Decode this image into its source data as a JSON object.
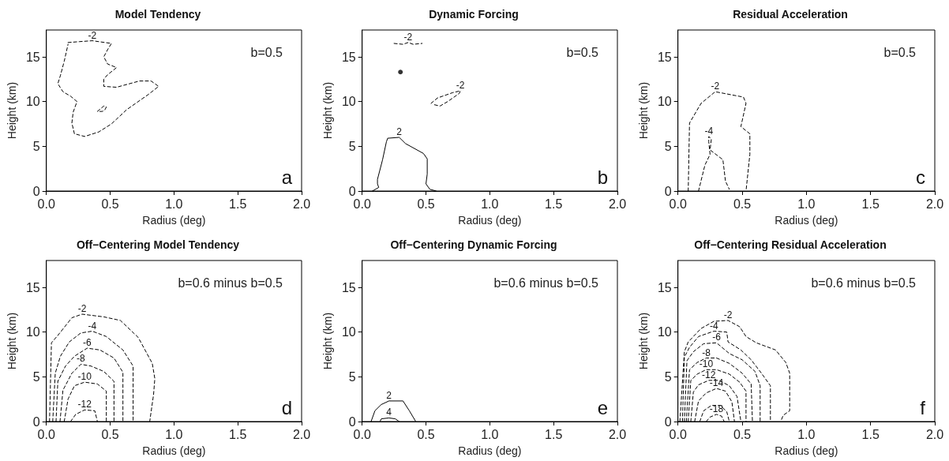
{
  "chart_data": [
    {
      "type": "line",
      "title": "Model Tendency",
      "xlabel": "Radius (deg)",
      "ylabel": "Height (km)",
      "annotations": [
        "b=0.5",
        "a"
      ],
      "xlim": [
        0,
        2
      ],
      "xticks": [
        {
          "value": 0,
          "label": "0.0"
        },
        {
          "value": 0.5,
          "label": "0.5"
        },
        {
          "value": 1,
          "label": "1.0"
        },
        {
          "value": 1.5,
          "label": "1.5"
        },
        {
          "value": 2,
          "label": "2.0"
        }
      ],
      "ylim": [
        0,
        18
      ],
      "yticks": [
        0,
        5,
        10,
        15
      ],
      "marker": "none",
      "series": [
        {
          "name": "-2",
          "color": "#000000",
          "line_style": "dashed",
          "x": [
            0.17,
            0.26,
            0.36,
            0.51,
            0.48,
            0.45,
            0.48,
            0.55,
            0.48,
            0.45,
            0.45,
            0.55,
            0.73,
            0.82,
            0.88,
            0.8,
            0.63,
            0.51,
            0.41,
            0.3,
            0.22,
            0.2,
            0.21,
            0.24,
            0.19,
            0.13,
            0.09,
            0.11,
            0.14,
            0.17
          ],
          "values": [
            16.6,
            16.7,
            16.8,
            16.5,
            15.8,
            15,
            14.2,
            13.8,
            13,
            12.5,
            11.7,
            11.6,
            12.3,
            12.3,
            11.7,
            10.8,
            9.1,
            7.5,
            6.6,
            6.1,
            6.4,
            7.6,
            8.8,
            10,
            10.6,
            11.1,
            12,
            12.9,
            14.5,
            16.4
          ]
        },
        {
          "color": "#000000",
          "line_style": "dashed",
          "x": [
            0.4,
            0.45,
            0.47,
            0.46,
            0.44,
            0.41
          ],
          "values": [
            8.9,
            9.5,
            9.4,
            9.1,
            8.9,
            8.9
          ]
        }
      ]
    },
    {
      "type": "line",
      "title": "Dynamic Forcing",
      "xlabel": "Radius (deg)",
      "ylabel": "Height (km)",
      "annotations": [
        "b=0.5",
        "b"
      ],
      "xlim": [
        0,
        2
      ],
      "xticks": [
        {
          "value": 0,
          "label": "0.0"
        },
        {
          "value": 0.5,
          "label": "0.5"
        },
        {
          "value": 1,
          "label": "1.0"
        },
        {
          "value": 1.5,
          "label": "1.5"
        },
        {
          "value": 2,
          "label": "2.0"
        }
      ],
      "ylim": [
        0,
        18
      ],
      "yticks": [
        0,
        5,
        10,
        15
      ],
      "marker": "none",
      "series": [
        {
          "name": "-2",
          "color": "#000000",
          "line_style": "dashed",
          "x": [
            0.25,
            0.32,
            0.36,
            0.4,
            0.47
          ],
          "values": [
            16.5,
            16.4,
            16.6,
            16.4,
            16.5
          ]
        },
        {
          "name": "-2",
          "color": "#000000",
          "line_style": "dashed",
          "x": [
            0.54,
            0.59,
            0.71,
            0.77,
            0.76,
            0.67,
            0.61,
            0.55
          ],
          "values": [
            9.8,
            10.4,
            11,
            11.2,
            10.9,
            10,
            9.5,
            9.7
          ]
        },
        {
          "name": "2",
          "color": "#000000",
          "line_style": "solid",
          "x": [
            0.08,
            0.13,
            0.12,
            0.12,
            0.16,
            0.19,
            0.2,
            0.29,
            0.34,
            0.48,
            0.51,
            0.51,
            0.5,
            0.53,
            0.58
          ],
          "values": [
            0,
            0.4,
            0.8,
            1.3,
            3.5,
            5.5,
            5.9,
            6,
            5.3,
            4.2,
            3.6,
            1.9,
            0.8,
            0.2,
            0
          ]
        },
        {
          "type": "scatter",
          "color": "#000000",
          "marker": "circle",
          "x": [
            0.3
          ],
          "values": [
            13.3
          ]
        }
      ]
    },
    {
      "type": "line",
      "title": "Residual Acceleration",
      "xlabel": "Radius (deg)",
      "ylabel": "Height (km)",
      "annotations": [
        "b=0.5",
        "c"
      ],
      "xlim": [
        0,
        2
      ],
      "xticks": [
        {
          "value": 0,
          "label": "0.0"
        },
        {
          "value": 0.5,
          "label": "0.5"
        },
        {
          "value": 1,
          "label": "1.0"
        },
        {
          "value": 1.5,
          "label": "1.5"
        },
        {
          "value": 2,
          "label": "2.0"
        }
      ],
      "ylim": [
        0,
        18
      ],
      "yticks": [
        0,
        5,
        10,
        15
      ],
      "marker": "none",
      "series": [
        {
          "name": "-2",
          "color": "#000000",
          "line_style": "dashed",
          "x": [
            0.08,
            0.09,
            0.18,
            0.29,
            0.51,
            0.53,
            0.49,
            0.56,
            0.56,
            0.53
          ],
          "values": [
            0,
            7.6,
            9.8,
            11.1,
            10.5,
            9.8,
            7.2,
            6.4,
            4.1,
            0
          ]
        },
        {
          "name": "-4",
          "color": "#000000",
          "line_style": "dashed",
          "x": [
            0.16,
            0.21,
            0.25,
            0.24,
            0.24,
            0.26,
            0.25,
            0.35,
            0.37,
            0.4
          ],
          "values": [
            0,
            2.9,
            4.1,
            5.5,
            6.1,
            5.8,
            4.6,
            3.5,
            1.1,
            0.2
          ]
        }
      ]
    },
    {
      "type": "line",
      "title": "Off−Centering Model Tendency",
      "xlabel": "Radius (deg)",
      "ylabel": "Height (km)",
      "annotations": [
        "b=0.6 minus b=0.5",
        "d"
      ],
      "xlim": [
        0,
        2
      ],
      "xticks": [
        {
          "value": 0,
          "label": "0.0"
        },
        {
          "value": 0.5,
          "label": "0.5"
        },
        {
          "value": 1,
          "label": "1.0"
        },
        {
          "value": 1.5,
          "label": "1.5"
        },
        {
          "value": 2,
          "label": "2.0"
        }
      ],
      "ylim": [
        0,
        18
      ],
      "yticks": [
        0,
        5,
        10,
        15
      ],
      "marker": "none",
      "series": [
        {
          "name": "-2",
          "color": "#000000",
          "line_style": "dashed",
          "x": [
            0.025,
            0.04,
            0.1,
            0.2,
            0.28,
            0.45,
            0.58,
            0.72,
            0.83,
            0.85,
            0.84,
            0.81
          ],
          "values": [
            0,
            8.8,
            9.8,
            11.6,
            12,
            11.7,
            11.3,
            9.4,
            6.5,
            4.8,
            3,
            0
          ]
        },
        {
          "name": "-4",
          "color": "#000000",
          "line_style": "dashed",
          "x": [
            0.05,
            0.07,
            0.11,
            0.18,
            0.27,
            0.36,
            0.47,
            0.6,
            0.68,
            0.68
          ],
          "values": [
            0,
            5.4,
            7.3,
            8.9,
            9.9,
            10.1,
            9.5,
            8,
            6.2,
            0
          ]
        },
        {
          "name": "-6",
          "color": "#000000",
          "line_style": "dashed",
          "x": [
            0.076,
            0.09,
            0.15,
            0.22,
            0.32,
            0.42,
            0.53,
            0.6,
            0.6
          ],
          "values": [
            0,
            4.5,
            6.2,
            7.3,
            8.2,
            8,
            7.1,
            5.5,
            0
          ]
        },
        {
          "name": "-8",
          "color": "#000000",
          "line_style": "dashed",
          "x": [
            0.107,
            0.13,
            0.2,
            0.27,
            0.35,
            0.45,
            0.53,
            0.53
          ],
          "values": [
            0,
            3.5,
            5.4,
            6.4,
            6.2,
            5.6,
            4.5,
            0
          ]
        },
        {
          "name": "-10",
          "color": "#000000",
          "line_style": "dashed",
          "x": [
            0.14,
            0.17,
            0.22,
            0.3,
            0.4,
            0.47,
            0.47
          ],
          "values": [
            0,
            2.5,
            4,
            4.4,
            4.2,
            3.4,
            0
          ]
        },
        {
          "name": "-12",
          "color": "#000000",
          "line_style": "dashed",
          "x": [
            0.19,
            0.23,
            0.3,
            0.38,
            0.4
          ],
          "values": [
            0,
            0.8,
            1.3,
            1.2,
            0
          ]
        }
      ]
    },
    {
      "type": "line",
      "title": "Off−Centering Dynamic Forcing",
      "xlabel": "Radius (deg)",
      "ylabel": "Height (km)",
      "annotations": [
        "b=0.6 minus b=0.5",
        "e"
      ],
      "xlim": [
        0,
        2
      ],
      "xticks": [
        {
          "value": 0,
          "label": "0.0"
        },
        {
          "value": 0.5,
          "label": "0.5"
        },
        {
          "value": 1,
          "label": "1.0"
        },
        {
          "value": 1.5,
          "label": "1.5"
        },
        {
          "value": 2,
          "label": "2.0"
        }
      ],
      "ylim": [
        0,
        18
      ],
      "yticks": [
        0,
        5,
        10,
        15
      ],
      "marker": "none",
      "series": [
        {
          "name": "2",
          "color": "#000000",
          "line_style": "solid",
          "x": [
            0.07,
            0.1,
            0.15,
            0.21,
            0.32,
            0.37,
            0.42
          ],
          "values": [
            0,
            1.2,
            1.9,
            2.3,
            2.3,
            1.2,
            0
          ]
        },
        {
          "name": "4",
          "color": "#000000",
          "line_style": "solid",
          "x": [
            0.14,
            0.15,
            0.21,
            0.26,
            0.29
          ],
          "values": [
            0,
            0.3,
            0.4,
            0.3,
            0
          ]
        }
      ]
    },
    {
      "type": "line",
      "title": "Off−Centering Residual Acceleration",
      "xlabel": "Radius (deg)",
      "ylabel": "Height (km)",
      "annotations": [
        "b=0.6 minus b=0.5",
        "f"
      ],
      "xlim": [
        0,
        2
      ],
      "xticks": [
        {
          "value": 0,
          "label": "0.0"
        },
        {
          "value": 0.5,
          "label": "0.5"
        },
        {
          "value": 1,
          "label": "1.0"
        },
        {
          "value": 1.5,
          "label": "1.5"
        },
        {
          "value": 2,
          "label": "2.0"
        }
      ],
      "ylim": [
        0,
        18
      ],
      "yticks": [
        0,
        5,
        10,
        15
      ],
      "marker": "none",
      "series": [
        {
          "name": "-2",
          "color": "#000000",
          "line_style": "dashed",
          "x": [
            0.015,
            0.05,
            0.08,
            0.18,
            0.28,
            0.39,
            0.48,
            0.53,
            0.61,
            0.76,
            0.84,
            0.87,
            0.87,
            0.82,
            0.8
          ],
          "values": [
            0,
            7.8,
            8.9,
            10.4,
            11.2,
            11.3,
            10.6,
            9.5,
            8.8,
            8,
            6.6,
            5.4,
            1.2,
            0.7,
            0
          ]
        },
        {
          "name": "-4",
          "color": "#000000",
          "line_style": "dashed",
          "x": [
            0.035,
            0.05,
            0.09,
            0.16,
            0.28,
            0.38,
            0.39,
            0.49,
            0.57,
            0.65,
            0.72,
            0.72
          ],
          "values": [
            0,
            7.2,
            8.3,
            9.5,
            10.1,
            10,
            8.9,
            8,
            6.9,
            5.4,
            4,
            0
          ]
        },
        {
          "name": "-6",
          "color": "#000000",
          "line_style": "dashed",
          "x": [
            0.05,
            0.07,
            0.12,
            0.2,
            0.3,
            0.4,
            0.5,
            0.6,
            0.64,
            0.64
          ],
          "values": [
            0,
            6.8,
            7.8,
            8.7,
            8.8,
            7.6,
            6.9,
            5.6,
            4,
            0
          ]
        },
        {
          "name": "-8",
          "color": "#000000",
          "line_style": "dashed",
          "x": [
            0.065,
            0.09,
            0.15,
            0.22,
            0.3,
            0.4,
            0.5,
            0.57,
            0.58
          ],
          "values": [
            0,
            5.8,
            6.6,
            7.1,
            7.1,
            6.5,
            5.4,
            4.2,
            0
          ]
        },
        {
          "name": "-10",
          "color": "#000000",
          "line_style": "dashed",
          "x": [
            0.08,
            0.1,
            0.15,
            0.22,
            0.3,
            0.4,
            0.48,
            0.53,
            0.53
          ],
          "values": [
            0,
            4.6,
            5.3,
            5.8,
            5.8,
            5.3,
            4.4,
            3.4,
            0
          ]
        },
        {
          "name": "-12",
          "color": "#000000",
          "line_style": "dashed",
          "x": [
            0.1,
            0.12,
            0.16,
            0.24,
            0.32,
            0.4,
            0.46,
            0.49
          ],
          "values": [
            0,
            3.3,
            4.1,
            4.6,
            4.6,
            4,
            2.8,
            0
          ]
        },
        {
          "name": "-14",
          "color": "#000000",
          "line_style": "dashed",
          "x": [
            0.13,
            0.16,
            0.22,
            0.3,
            0.37,
            0.42,
            0.44
          ],
          "values": [
            0,
            2.3,
            3.2,
            3.7,
            3.4,
            2.2,
            0
          ]
        },
        {
          "color": "#000000",
          "line_style": "dashed",
          "x": [
            0.17,
            0.2,
            0.26,
            0.33,
            0.38,
            0.4
          ],
          "values": [
            0,
            1.2,
            1.8,
            1.8,
            1.1,
            0
          ]
        },
        {
          "name": "-18",
          "color": "#000000",
          "line_style": "dashed",
          "x": [
            0.22,
            0.25,
            0.3,
            0.34,
            0.36
          ],
          "values": [
            0,
            0.5,
            0.8,
            0.6,
            0
          ]
        }
      ]
    }
  ]
}
